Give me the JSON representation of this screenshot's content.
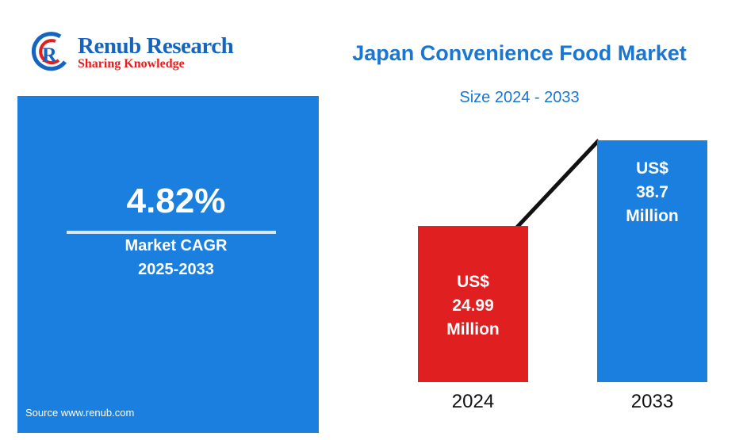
{
  "brand": {
    "name": "Renub Research",
    "tagline": "Sharing Knowledge",
    "colors": {
      "primary": "#1565c0",
      "accent": "#e02020"
    }
  },
  "title": "Japan Convenience Food Market",
  "subtitle": "Size 2024 - 2033",
  "cagr": {
    "value": "4.82%",
    "label": "Market CAGR",
    "period": "2025-2033"
  },
  "source": "Source  www.renub.com",
  "chart_data": {
    "type": "bar",
    "categories": [
      "2024",
      "2033"
    ],
    "values": [
      24.99,
      38.7
    ],
    "value_labels": [
      [
        "US$",
        "24.99",
        "Million"
      ],
      [
        "US$",
        "38.7",
        "Million"
      ]
    ],
    "colors": [
      "#e02020",
      "#1a7fde"
    ],
    "trend_line": true,
    "ylim": [
      0,
      38.7
    ]
  }
}
